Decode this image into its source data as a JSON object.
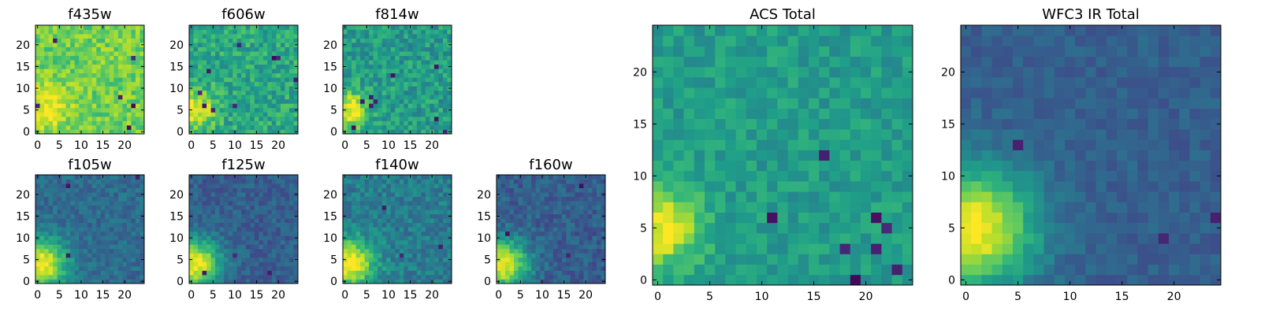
{
  "chart_data": [
    {
      "id": "f435w",
      "type": "heatmap",
      "title": "f435w",
      "grid_size": 25,
      "xticks": [
        0,
        5,
        10,
        15,
        20
      ],
      "yticks": [
        0,
        5,
        10,
        15,
        20
      ],
      "colormap": "viridis",
      "source_x": 2,
      "source_y": 6,
      "source_radius": 3.5,
      "background": 0.78,
      "noise": 0.12,
      "dark_spots": 6,
      "seed": 11
    },
    {
      "id": "f606w",
      "type": "heatmap",
      "title": "f606w",
      "grid_size": 25,
      "xticks": [
        0,
        5,
        10,
        15,
        20
      ],
      "yticks": [
        0,
        5,
        10,
        15,
        20
      ],
      "colormap": "viridis",
      "source_x": 1,
      "source_y": 5,
      "source_radius": 3,
      "background": 0.6,
      "noise": 0.14,
      "dark_spots": 9,
      "seed": 23
    },
    {
      "id": "f814w",
      "type": "heatmap",
      "title": "f814w",
      "grid_size": 25,
      "xticks": [
        0,
        5,
        10,
        15,
        20
      ],
      "yticks": [
        0,
        5,
        10,
        15,
        20
      ],
      "colormap": "viridis",
      "source_x": 1,
      "source_y": 5,
      "source_radius": 3,
      "background": 0.55,
      "noise": 0.14,
      "dark_spots": 9,
      "seed": 37
    },
    {
      "id": "f105w",
      "type": "heatmap",
      "title": "f105w",
      "grid_size": 25,
      "xticks": [
        0,
        5,
        10,
        15,
        20
      ],
      "yticks": [
        0,
        5,
        10,
        15,
        20
      ],
      "colormap": "viridis",
      "source_x": 1,
      "source_y": 4,
      "source_radius": 4,
      "background": 0.35,
      "noise": 0.09,
      "dark_spots": 3,
      "seed": 41
    },
    {
      "id": "f125w",
      "type": "heatmap",
      "title": "f125w",
      "grid_size": 25,
      "xticks": [
        0,
        5,
        10,
        15,
        20
      ],
      "yticks": [
        0,
        5,
        10,
        15,
        20
      ],
      "colormap": "viridis",
      "source_x": 1,
      "source_y": 4,
      "source_radius": 4,
      "background": 0.3,
      "noise": 0.09,
      "dark_spots": 3,
      "seed": 53
    },
    {
      "id": "f140w",
      "type": "heatmap",
      "title": "f140w",
      "grid_size": 25,
      "xticks": [
        0,
        5,
        10,
        15,
        20
      ],
      "yticks": [
        0,
        5,
        10,
        15,
        20
      ],
      "colormap": "viridis",
      "source_x": 1,
      "source_y": 4,
      "source_radius": 4,
      "background": 0.42,
      "noise": 0.11,
      "dark_spots": 3,
      "seed": 67
    },
    {
      "id": "f160w",
      "type": "heatmap",
      "title": "f160w",
      "grid_size": 25,
      "xticks": [
        0,
        5,
        10,
        15,
        20
      ],
      "yticks": [
        0,
        5,
        10,
        15,
        20
      ],
      "colormap": "viridis",
      "source_x": 1,
      "source_y": 4,
      "source_radius": 4,
      "background": 0.3,
      "noise": 0.1,
      "dark_spots": 3,
      "seed": 79
    },
    {
      "id": "acs_total",
      "type": "heatmap",
      "title": "ACS Total",
      "grid_size": 25,
      "xticks": [
        0,
        5,
        10,
        15,
        20
      ],
      "yticks": [
        0,
        5,
        10,
        15,
        20
      ],
      "colormap": "viridis",
      "source_x": 0.5,
      "source_y": 5,
      "source_radius": 2.5,
      "background": 0.55,
      "noise": 0.09,
      "dark_spots": 8,
      "seed": 97
    },
    {
      "id": "wfc3_ir_total",
      "type": "heatmap",
      "title": "WFC3 IR Total",
      "grid_size": 25,
      "xticks": [
        0,
        5,
        10,
        15,
        20
      ],
      "yticks": [
        0,
        5,
        10,
        15,
        20
      ],
      "colormap": "viridis",
      "source_x": 1,
      "source_y": 5,
      "source_radius": 4,
      "background": 0.3,
      "noise": 0.06,
      "dark_spots": 3,
      "seed": 113
    }
  ]
}
